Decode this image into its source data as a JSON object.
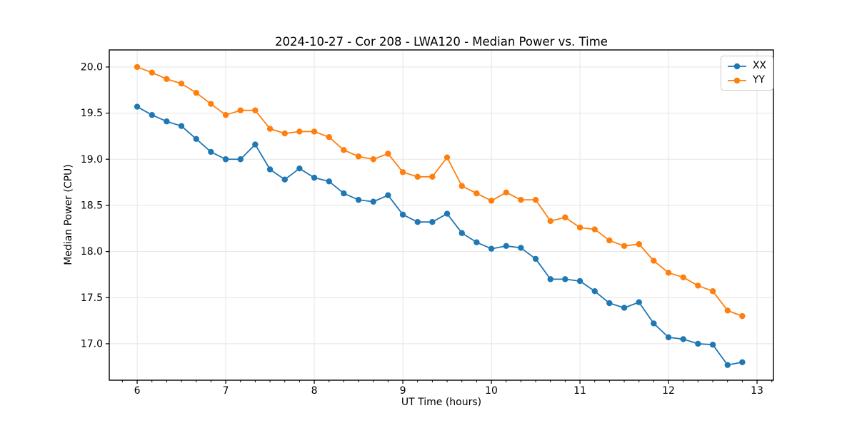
{
  "figure": {
    "background": "#ffffff",
    "axes_background": "#ffffff",
    "spine_color": "#000000",
    "grid_color": "#e5e5e5",
    "tick_color": "#000000",
    "text_color": "#000000"
  },
  "legend": {
    "entries": [
      "XX",
      "YY"
    ]
  },
  "chart_data": {
    "type": "line",
    "title": "2024-10-27 - Cor 208 - LWA120 - Median Power vs. Time",
    "xlabel": "UT Time (hours)",
    "ylabel": "Median Power (CPU)",
    "xlim": [
      5.685,
      13.185
    ],
    "ylim": [
      16.605,
      20.185
    ],
    "xticks": [
      6,
      7,
      8,
      9,
      10,
      11,
      12,
      13
    ],
    "xtick_labels": [
      "6",
      "7",
      "8",
      "9",
      "10",
      "11",
      "12",
      "13"
    ],
    "yticks": [
      17.0,
      17.5,
      18.0,
      18.5,
      19.0,
      19.5,
      20.0
    ],
    "ytick_labels": [
      "17.0",
      "17.5",
      "18.0",
      "18.5",
      "19.0",
      "19.5",
      "20.0"
    ],
    "x_minor_interval": 0.166667,
    "grid": true,
    "legend_position": "upper right",
    "marker": "circle",
    "marker_radius": 4.2,
    "line_width": 1.8,
    "x": [
      6.0,
      6.167,
      6.333,
      6.5,
      6.667,
      6.833,
      7.0,
      7.167,
      7.333,
      7.5,
      7.667,
      7.833,
      8.0,
      8.167,
      8.333,
      8.5,
      8.667,
      8.833,
      9.0,
      9.167,
      9.333,
      9.5,
      9.667,
      9.833,
      10.0,
      10.167,
      10.333,
      10.5,
      10.667,
      10.833,
      11.0,
      11.167,
      11.333,
      11.5,
      11.667,
      11.833,
      12.0,
      12.167,
      12.333,
      12.5,
      12.667,
      12.833
    ],
    "series": [
      {
        "name": "XX",
        "color": "#1f77b4",
        "values": [
          19.57,
          19.48,
          19.41,
          19.36,
          19.22,
          19.08,
          19.0,
          19.0,
          19.16,
          18.89,
          18.78,
          18.9,
          18.8,
          18.76,
          18.63,
          18.56,
          18.54,
          18.61,
          18.4,
          18.32,
          18.32,
          18.41,
          18.2,
          18.1,
          18.03,
          18.06,
          18.04,
          17.92,
          17.7,
          17.7,
          17.68,
          17.57,
          17.44,
          17.39,
          17.45,
          17.22,
          17.07,
          17.05,
          17.0,
          16.99,
          16.77,
          16.8
        ]
      },
      {
        "name": "YY",
        "color": "#ff7f0e",
        "values": [
          20.0,
          19.94,
          19.87,
          19.82,
          19.72,
          19.6,
          19.48,
          19.53,
          19.53,
          19.33,
          19.28,
          19.3,
          19.3,
          19.24,
          19.1,
          19.03,
          19.0,
          19.06,
          18.86,
          18.81,
          18.81,
          19.02,
          18.71,
          18.63,
          18.55,
          18.64,
          18.56,
          18.56,
          18.33,
          18.37,
          18.26,
          18.24,
          18.12,
          18.06,
          18.08,
          17.9,
          17.77,
          17.72,
          17.63,
          17.57,
          17.36,
          17.3
        ]
      }
    ]
  }
}
